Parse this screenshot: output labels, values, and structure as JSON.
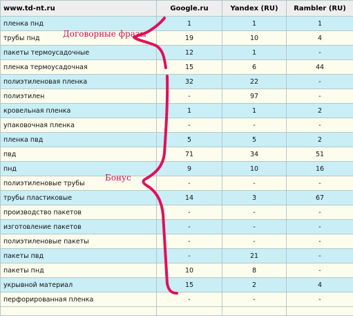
{
  "table": {
    "headers": [
      "www.td-nt.ru",
      "Google.ru",
      "Yandex (RU)",
      "Rambler (RU)"
    ],
    "rows": [
      [
        "пленка пнд",
        "1",
        "1",
        "1"
      ],
      [
        "трубы пнд",
        "19",
        "10",
        "4"
      ],
      [
        "пакеты термоусадочные",
        "12",
        "1",
        "-"
      ],
      [
        "пленка термоусадочная",
        "15",
        "6",
        "44"
      ],
      [
        "полиэтиленовая пленка",
        "32",
        "22",
        "-"
      ],
      [
        "полиэтилен",
        "-",
        "97",
        "-"
      ],
      [
        "кровельная пленка",
        "1",
        "1",
        "2"
      ],
      [
        "упаковочная пленка",
        "-",
        "-",
        "-"
      ],
      [
        "пленка пвд",
        "5",
        "5",
        "2"
      ],
      [
        "пвд",
        "71",
        "34",
        "51"
      ],
      [
        "пнд",
        "9",
        "10",
        "16"
      ],
      [
        "полиэтиленовые трубы",
        "-",
        "-",
        "-"
      ],
      [
        "трубы пластиковые",
        "14",
        "3",
        "67"
      ],
      [
        "производство пакетов",
        "-",
        "-",
        "-"
      ],
      [
        "изготовление пакетов",
        "-",
        "-",
        "-"
      ],
      [
        "полиэтиленовые пакеты",
        "-",
        "-",
        "-"
      ],
      [
        "пакеты пвд",
        "-",
        "21",
        "-"
      ],
      [
        "пакеты пнд",
        "10",
        "8",
        "-"
      ],
      [
        "укрывной материал",
        "15",
        "2",
        "4"
      ],
      [
        "перфорированная пленка",
        "-",
        "-",
        "-"
      ]
    ]
  },
  "annotations": {
    "contract_label": "Договорные фразы",
    "bonus_label": "Бонус",
    "stroke_color": "#e0105a"
  }
}
